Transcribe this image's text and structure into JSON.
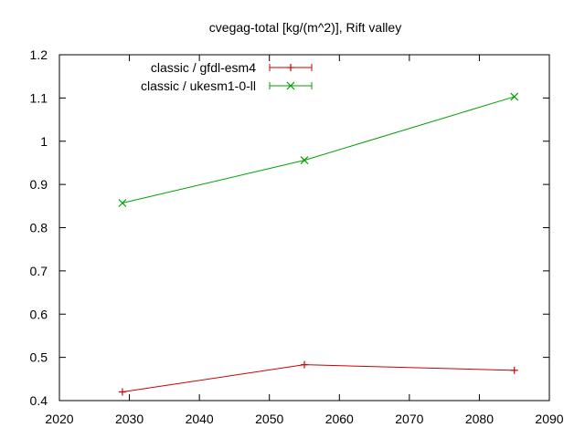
{
  "chart_data": {
    "type": "line",
    "title": "cvegag-total [kg/(m^2)], Rift valley",
    "xlabel": "",
    "ylabel": "",
    "xlim": [
      2020,
      2090
    ],
    "ylim": [
      0.4,
      1.2
    ],
    "x_ticks": [
      2020,
      2030,
      2040,
      2050,
      2060,
      2070,
      2080,
      2090
    ],
    "y_ticks": [
      0.4,
      0.5,
      0.6,
      0.7,
      0.8,
      0.9,
      1,
      1.1,
      1.2
    ],
    "y_tick_labels": [
      "0.4",
      "0.5",
      "0.6",
      "0.7",
      "0.8",
      "0.9",
      "1",
      "1.1",
      "1.2"
    ],
    "grid": false,
    "legend_position": "top-left",
    "series": [
      {
        "name": "classic / gfdl-esm4",
        "color": "#cc0000",
        "marker": "plus",
        "x": [
          2029,
          2055,
          2085
        ],
        "y": [
          0.42,
          0.483,
          0.47
        ]
      },
      {
        "name": "classic / ukesm1-0-ll",
        "color": "#00a000",
        "marker": "cross",
        "x": [
          2029,
          2055,
          2085
        ],
        "y": [
          0.857,
          0.956,
          1.103
        ]
      }
    ]
  }
}
